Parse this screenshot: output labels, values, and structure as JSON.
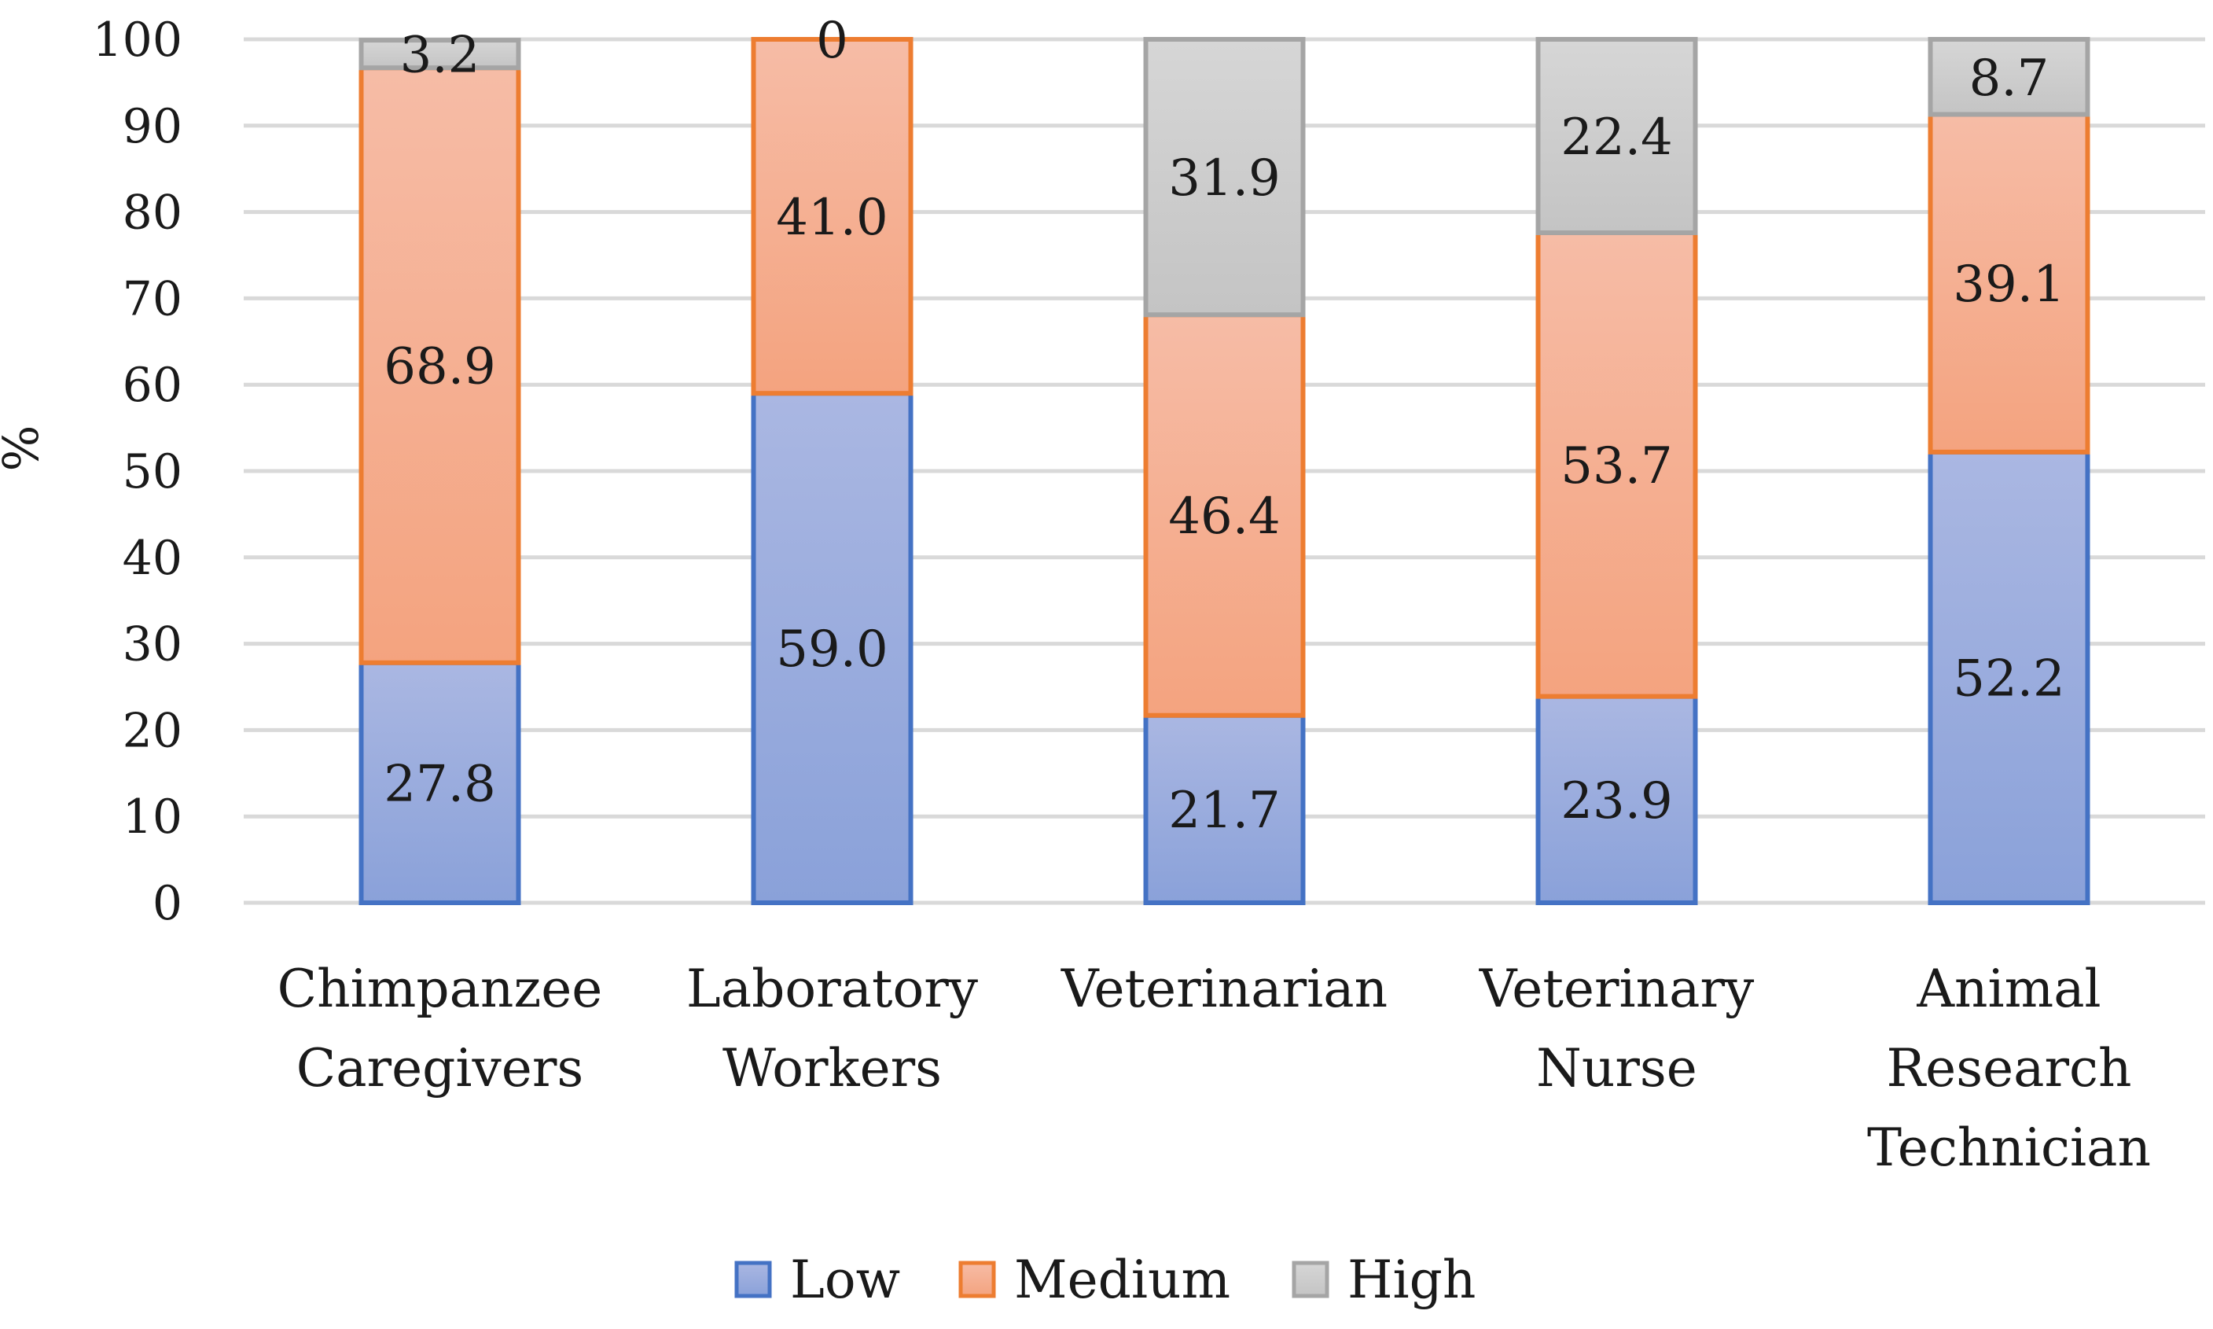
{
  "chart_data": {
    "type": "bar",
    "stacked": true,
    "title": "",
    "xlabel": "",
    "ylabel": "%",
    "ylim": [
      0,
      100
    ],
    "yticks": [
      0,
      10,
      20,
      30,
      40,
      50,
      60,
      70,
      80,
      90,
      100
    ],
    "grid": true,
    "legend_position": "bottom",
    "categories": [
      [
        "Chimpanzee",
        "Caregivers"
      ],
      [
        "Laboratory",
        "Workers"
      ],
      [
        "Veterinarian"
      ],
      [
        "Veterinary",
        "Nurse"
      ],
      [
        "Animal",
        "Research",
        "Technician"
      ]
    ],
    "series": [
      {
        "name": "Low",
        "values": [
          27.8,
          59.0,
          21.7,
          23.9,
          52.2
        ],
        "labels": [
          "27.8",
          "59.0",
          "21.7",
          "23.9",
          "52.2"
        ],
        "fill_top": "#aab7e2",
        "fill_bottom": "#8aa1d9",
        "stroke": "#4472c4"
      },
      {
        "name": "Medium",
        "values": [
          68.9,
          41.0,
          46.4,
          53.7,
          39.1
        ],
        "labels": [
          "68.9",
          "41.0",
          "46.4",
          "53.7",
          "39.1"
        ],
        "fill_top": "#f6bca6",
        "fill_bottom": "#f4a37f",
        "stroke": "#ed7d31"
      },
      {
        "name": "High",
        "values": [
          3.2,
          0,
          31.9,
          22.4,
          8.7
        ],
        "labels": [
          "3.2",
          "0",
          "31.9",
          "22.4",
          "8.7"
        ],
        "fill_top": "#d6d6d6",
        "fill_bottom": "#c4c4c4",
        "stroke": "#a5a5a5"
      }
    ],
    "gridline_color": "#d9d9d9"
  }
}
